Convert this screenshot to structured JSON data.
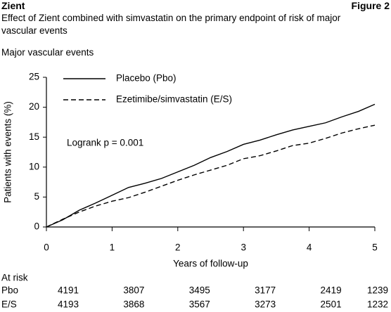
{
  "header": {
    "left": "Zient",
    "right": "Figure 2"
  },
  "chart_data": {
    "type": "line",
    "title": "Effect of Zient combined with simvastatin on the primary endpoint of risk of major vascular events",
    "subtitle": "Major vascular events",
    "x_label": "Years of follow-up",
    "y_label": "Patients with events (%)",
    "annotation": "Logrank p = 0.001",
    "x": [
      0,
      0.25,
      0.5,
      0.75,
      1,
      1.25,
      1.5,
      1.75,
      2,
      2.25,
      2.5,
      2.75,
      3,
      3.25,
      3.5,
      3.75,
      4,
      4.25,
      4.5,
      4.75,
      5
    ],
    "series": [
      {
        "name": "Placebo (Pbo)",
        "color": "#000000",
        "line_style": "solid",
        "values": [
          0,
          1.2,
          2.8,
          4.0,
          5.3,
          6.6,
          7.3,
          8.1,
          9.2,
          10.3,
          11.6,
          12.6,
          13.8,
          14.5,
          15.4,
          16.2,
          16.8,
          17.4,
          18.4,
          19.3,
          20.5
        ]
      },
      {
        "name": "Ezetimibe/simvastatin (E/S)",
        "color": "#000000",
        "line_style": "dashed",
        "values": [
          0,
          1.3,
          2.5,
          3.5,
          4.3,
          4.9,
          5.8,
          6.8,
          7.8,
          8.7,
          9.5,
          10.3,
          11.4,
          11.9,
          12.7,
          13.6,
          14.0,
          14.8,
          15.7,
          16.4,
          17.0
        ]
      }
    ],
    "xlim": [
      0,
      5
    ],
    "xticks": [
      0,
      1,
      2,
      3,
      4,
      5
    ],
    "ylim": [
      0,
      25
    ],
    "yticks": [
      0,
      5,
      10,
      15,
      20,
      25
    ],
    "legend": "upper left"
  },
  "at_risk": {
    "title": "At risk",
    "rows": [
      {
        "label": "Pbo",
        "values": [
          4191,
          3807,
          3495,
          3177,
          2419,
          1239
        ]
      },
      {
        "label": "E/S",
        "values": [
          4193,
          3868,
          3567,
          3273,
          2501,
          1232
        ]
      }
    ]
  }
}
